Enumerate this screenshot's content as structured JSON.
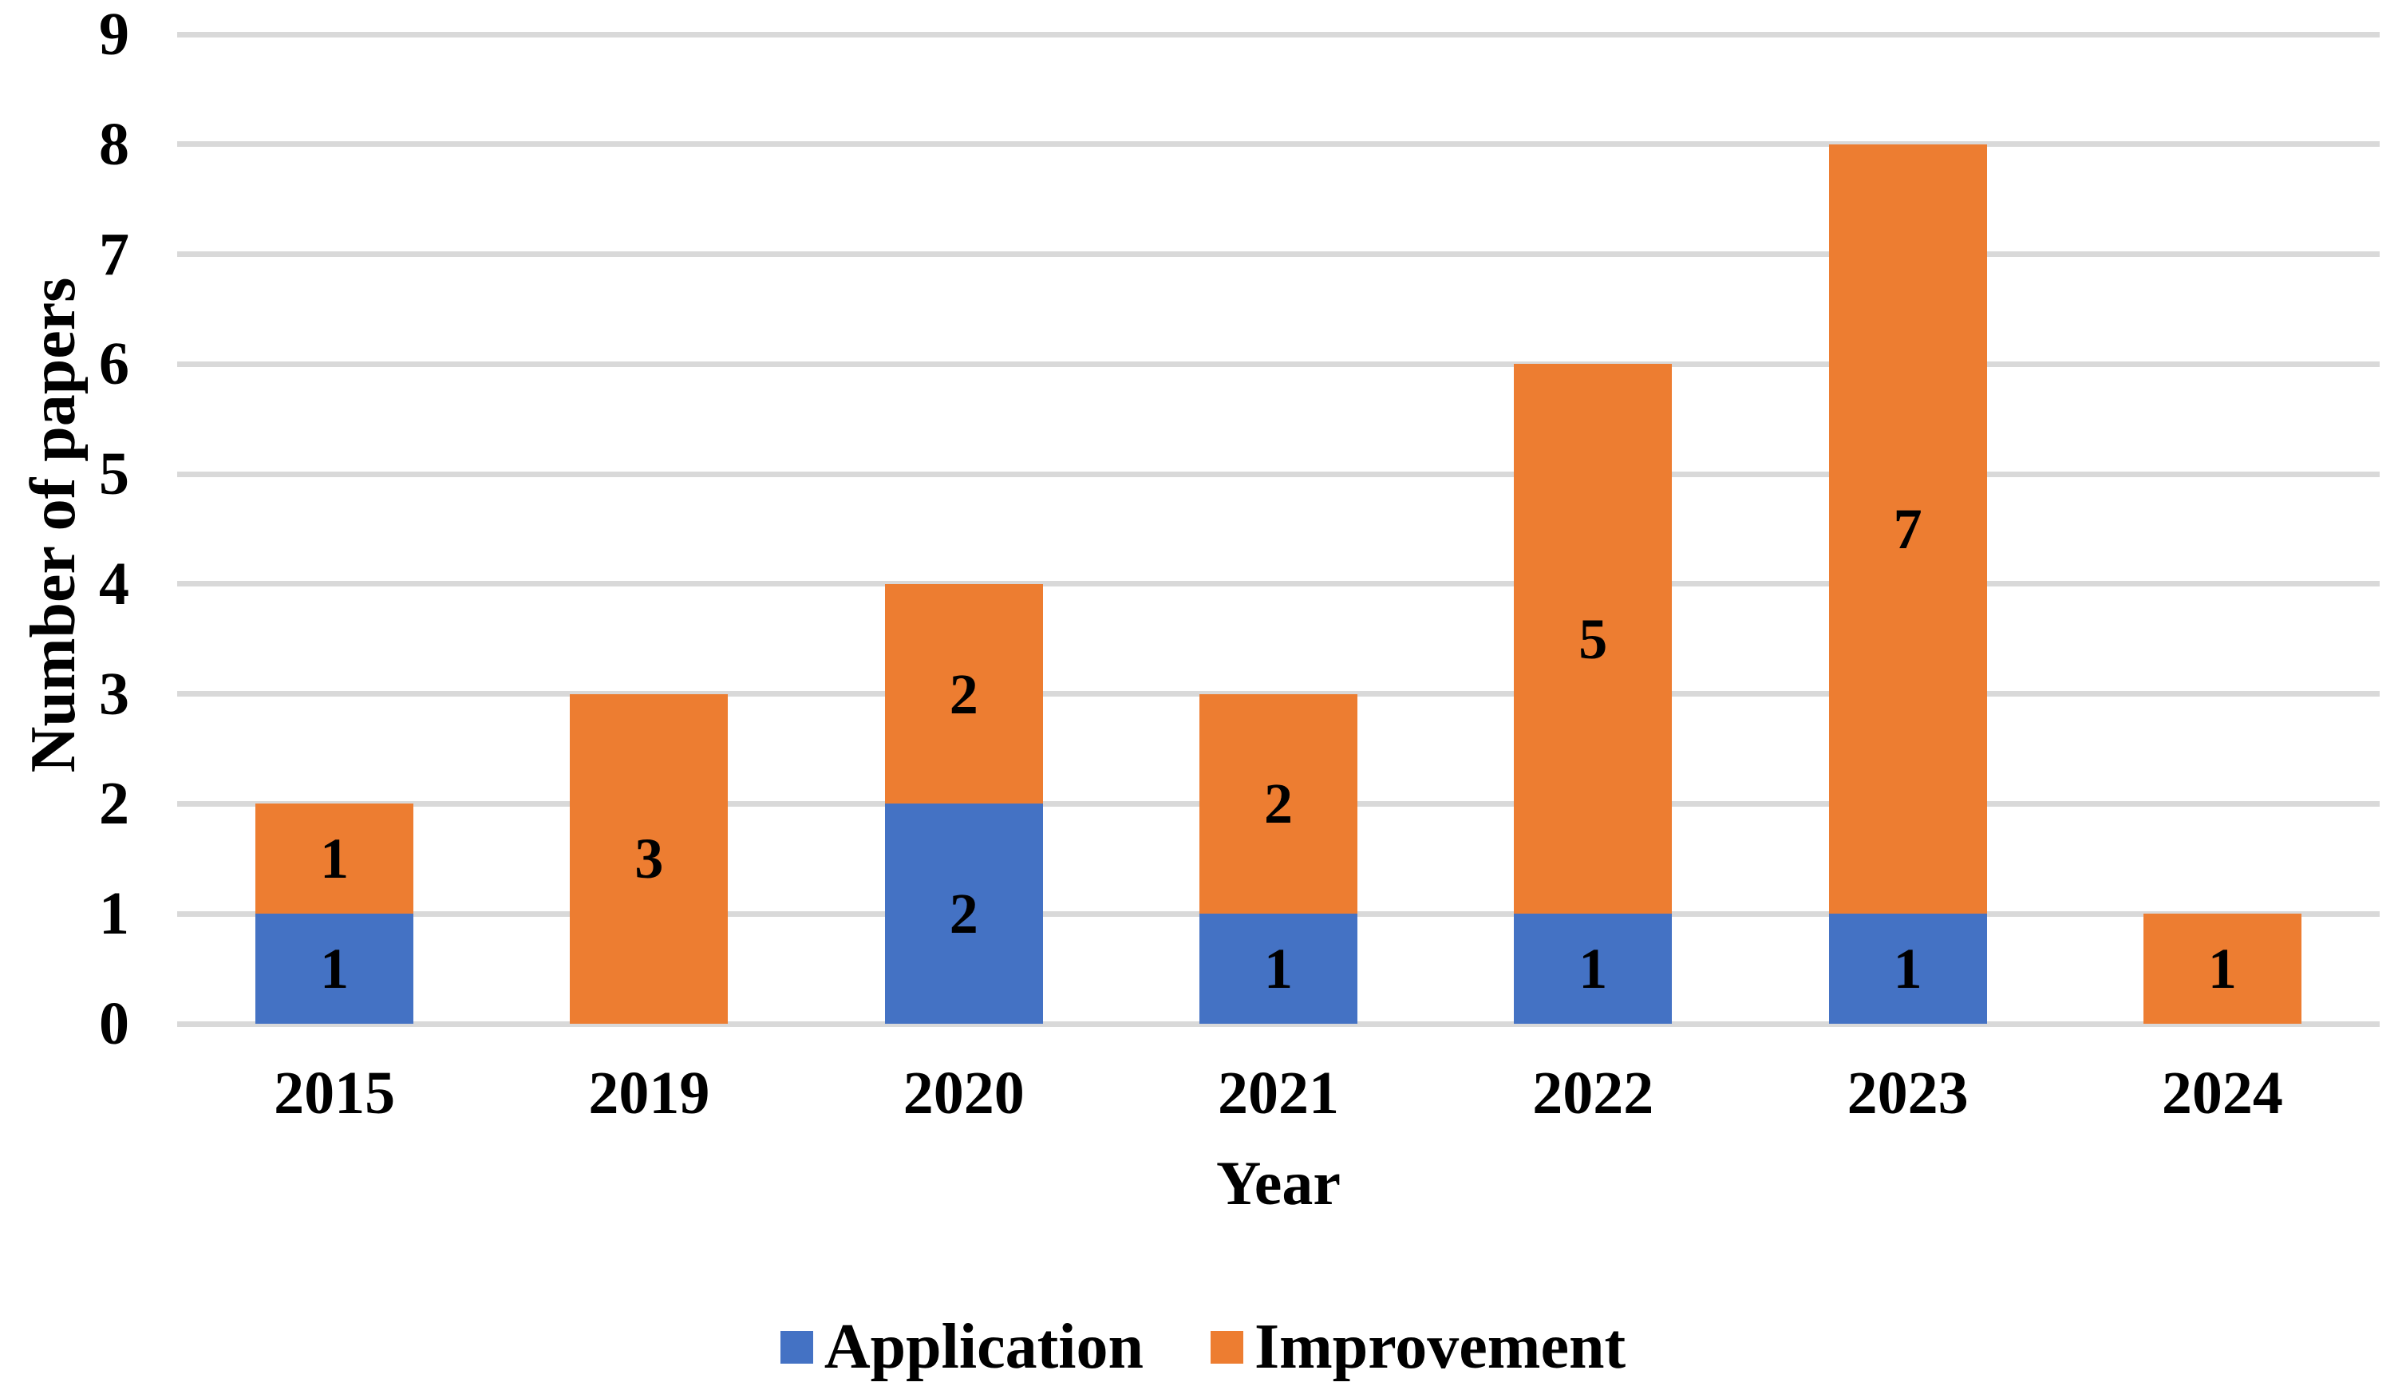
{
  "chart_data": {
    "type": "bar",
    "stacked": true,
    "title": "",
    "xlabel": "Year",
    "ylabel": "Number of papers",
    "categories": [
      "2015",
      "2019",
      "2020",
      "2021",
      "2022",
      "2023",
      "2024"
    ],
    "series": [
      {
        "name": "Application",
        "color": "#4472C4",
        "values": [
          1,
          0,
          2,
          1,
          1,
          1,
          0
        ]
      },
      {
        "name": "Improvement",
        "color": "#ED7D31",
        "values": [
          1,
          3,
          2,
          2,
          5,
          7,
          1
        ]
      }
    ],
    "ylim": [
      0,
      9
    ],
    "yticks": [
      0,
      1,
      2,
      3,
      4,
      5,
      6,
      7,
      8,
      9
    ],
    "grid": true,
    "gridline_color": "#D9D9D9",
    "data_labels_shown": true,
    "legend_position": "bottom"
  }
}
